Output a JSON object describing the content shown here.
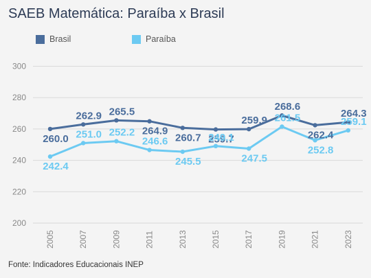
{
  "header": {
    "title": "SAEB Matemática: Paraíba x Brasil"
  },
  "source": "Fonte: Indicadores Educacionais INEP",
  "colors": {
    "brasil": "#4a6d9c",
    "paraiba": "#6ccaf2",
    "grid": "#d9d9d9"
  },
  "chart_data": {
    "type": "line",
    "title": "SAEB Matemática: Paraíba x Brasil",
    "categories": [
      "2005",
      "2007",
      "2009",
      "2011",
      "2013",
      "2015",
      "2017",
      "2019",
      "2021",
      "2023"
    ],
    "series": [
      {
        "name": "Brasil",
        "values": [
          260.0,
          262.9,
          265.5,
          264.9,
          260.7,
          259.7,
          259.9,
          268.6,
          262.4,
          264.3
        ]
      },
      {
        "name": "Paraíba",
        "values": [
          242.4,
          251.0,
          252.2,
          246.6,
          245.5,
          249.1,
          247.5,
          261.5,
          252.8,
          259.1
        ]
      }
    ],
    "y_ticks": [
      200,
      220,
      240,
      260,
      280,
      300
    ],
    "ylim": [
      200,
      300
    ],
    "grid": true,
    "legend": "top-left",
    "data_label_positions": {
      "Brasil": [
        "below",
        "above",
        "above",
        "below",
        "below",
        "below",
        "above",
        "above",
        "below",
        "above"
      ],
      "Paraíba": [
        "below",
        "above",
        "above",
        "above",
        "below",
        "above",
        "below",
        "above",
        "below",
        "above"
      ]
    }
  }
}
